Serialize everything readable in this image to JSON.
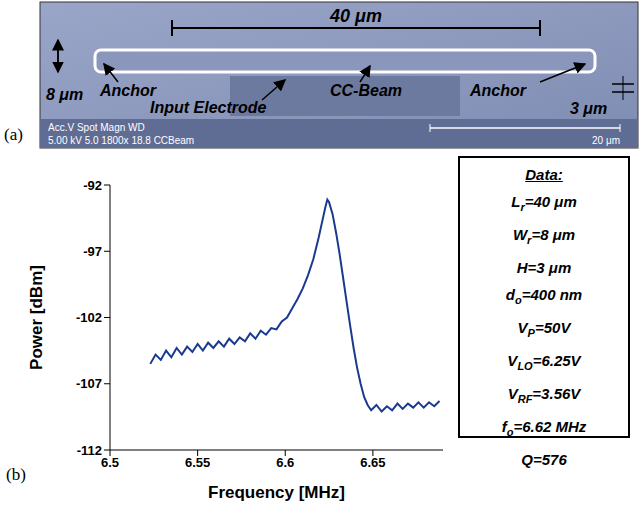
{
  "panel_a": {
    "label": "(a)",
    "dimensions": {
      "length": "40 μm",
      "width": "8 μm",
      "thickness": "3 μm"
    },
    "annotations": [
      "Anchor",
      "Input Electrode",
      "CC-Beam",
      "Anchor"
    ],
    "sem_info": [
      "Acc.V  Spot Magn    WD",
      "5.00 kV 5.0   1800x   18.8 CCBeam"
    ],
    "scale_bar": "20 μm"
  },
  "chart_data": {
    "label": "(b)",
    "type": "line",
    "x_label": "Frequency [MHz]",
    "y_label": "Power [dBm]",
    "color": "#1a3a8f",
    "grid": false,
    "xlim": [
      6.5,
      6.69
    ],
    "xticks": [
      6.5,
      6.55,
      6.6,
      6.65
    ],
    "ylim": [
      -112,
      -92
    ],
    "yticks": [
      -112,
      -107,
      -102,
      -97,
      -92
    ],
    "x": [
      6.523,
      6.526,
      6.529,
      6.532,
      6.535,
      6.538,
      6.541,
      6.544,
      6.547,
      6.55,
      6.553,
      6.556,
      6.559,
      6.562,
      6.565,
      6.568,
      6.571,
      6.574,
      6.577,
      6.58,
      6.583,
      6.586,
      6.589,
      6.592,
      6.595,
      6.598,
      6.601,
      6.604,
      6.607,
      6.61,
      6.613,
      6.616,
      6.619,
      6.621,
      6.623,
      6.624,
      6.625,
      6.627,
      6.629,
      6.631,
      6.633,
      6.635,
      6.637,
      6.639,
      6.641,
      6.643,
      6.645,
      6.647,
      6.649,
      6.652,
      6.655,
      6.658,
      6.661,
      6.664,
      6.667,
      6.67,
      6.673,
      6.676,
      6.679,
      6.682,
      6.685,
      6.688
    ],
    "values": [
      -105.5,
      -104.8,
      -105.2,
      -104.5,
      -105.0,
      -104.3,
      -104.8,
      -104.2,
      -104.6,
      -104.0,
      -104.5,
      -103.9,
      -104.3,
      -103.8,
      -104.2,
      -103.6,
      -104.0,
      -103.5,
      -103.8,
      -103.2,
      -103.6,
      -103.0,
      -103.3,
      -102.8,
      -102.9,
      -102.3,
      -102.0,
      -101.3,
      -100.6,
      -99.8,
      -98.8,
      -97.6,
      -96.0,
      -94.8,
      -93.6,
      -93.1,
      -93.3,
      -94.2,
      -95.6,
      -97.2,
      -99.0,
      -100.8,
      -102.6,
      -104.3,
      -105.8,
      -107.0,
      -108.0,
      -108.6,
      -109.0,
      -108.6,
      -109.1,
      -108.7,
      -109.0,
      -108.5,
      -108.9,
      -108.5,
      -108.8,
      -108.4,
      -108.8,
      -108.4,
      -108.7,
      -108.3
    ]
  },
  "data_box": {
    "title": "Data:",
    "lines": [
      {
        "symbol": "L",
        "sub": "r",
        "text": "=40 μm"
      },
      {
        "symbol": "W",
        "sub": "r",
        "text": "=8 μm"
      },
      {
        "symbol": "H",
        "sub": "",
        "text": "=3 μm"
      },
      {
        "symbol": "d",
        "sub": "o",
        "text": "=400 nm"
      },
      {
        "symbol": "V",
        "sub": "P",
        "text": "=50V"
      },
      {
        "symbol": "V",
        "sub": "LO",
        "text": "=6.25V"
      },
      {
        "symbol": "V",
        "sub": "RF",
        "text": "=3.56V"
      },
      {
        "symbol": "f",
        "sub": "o",
        "text": "=6.62 MHz"
      },
      {
        "symbol": "Q",
        "sub": "",
        "text": "=576"
      }
    ]
  }
}
